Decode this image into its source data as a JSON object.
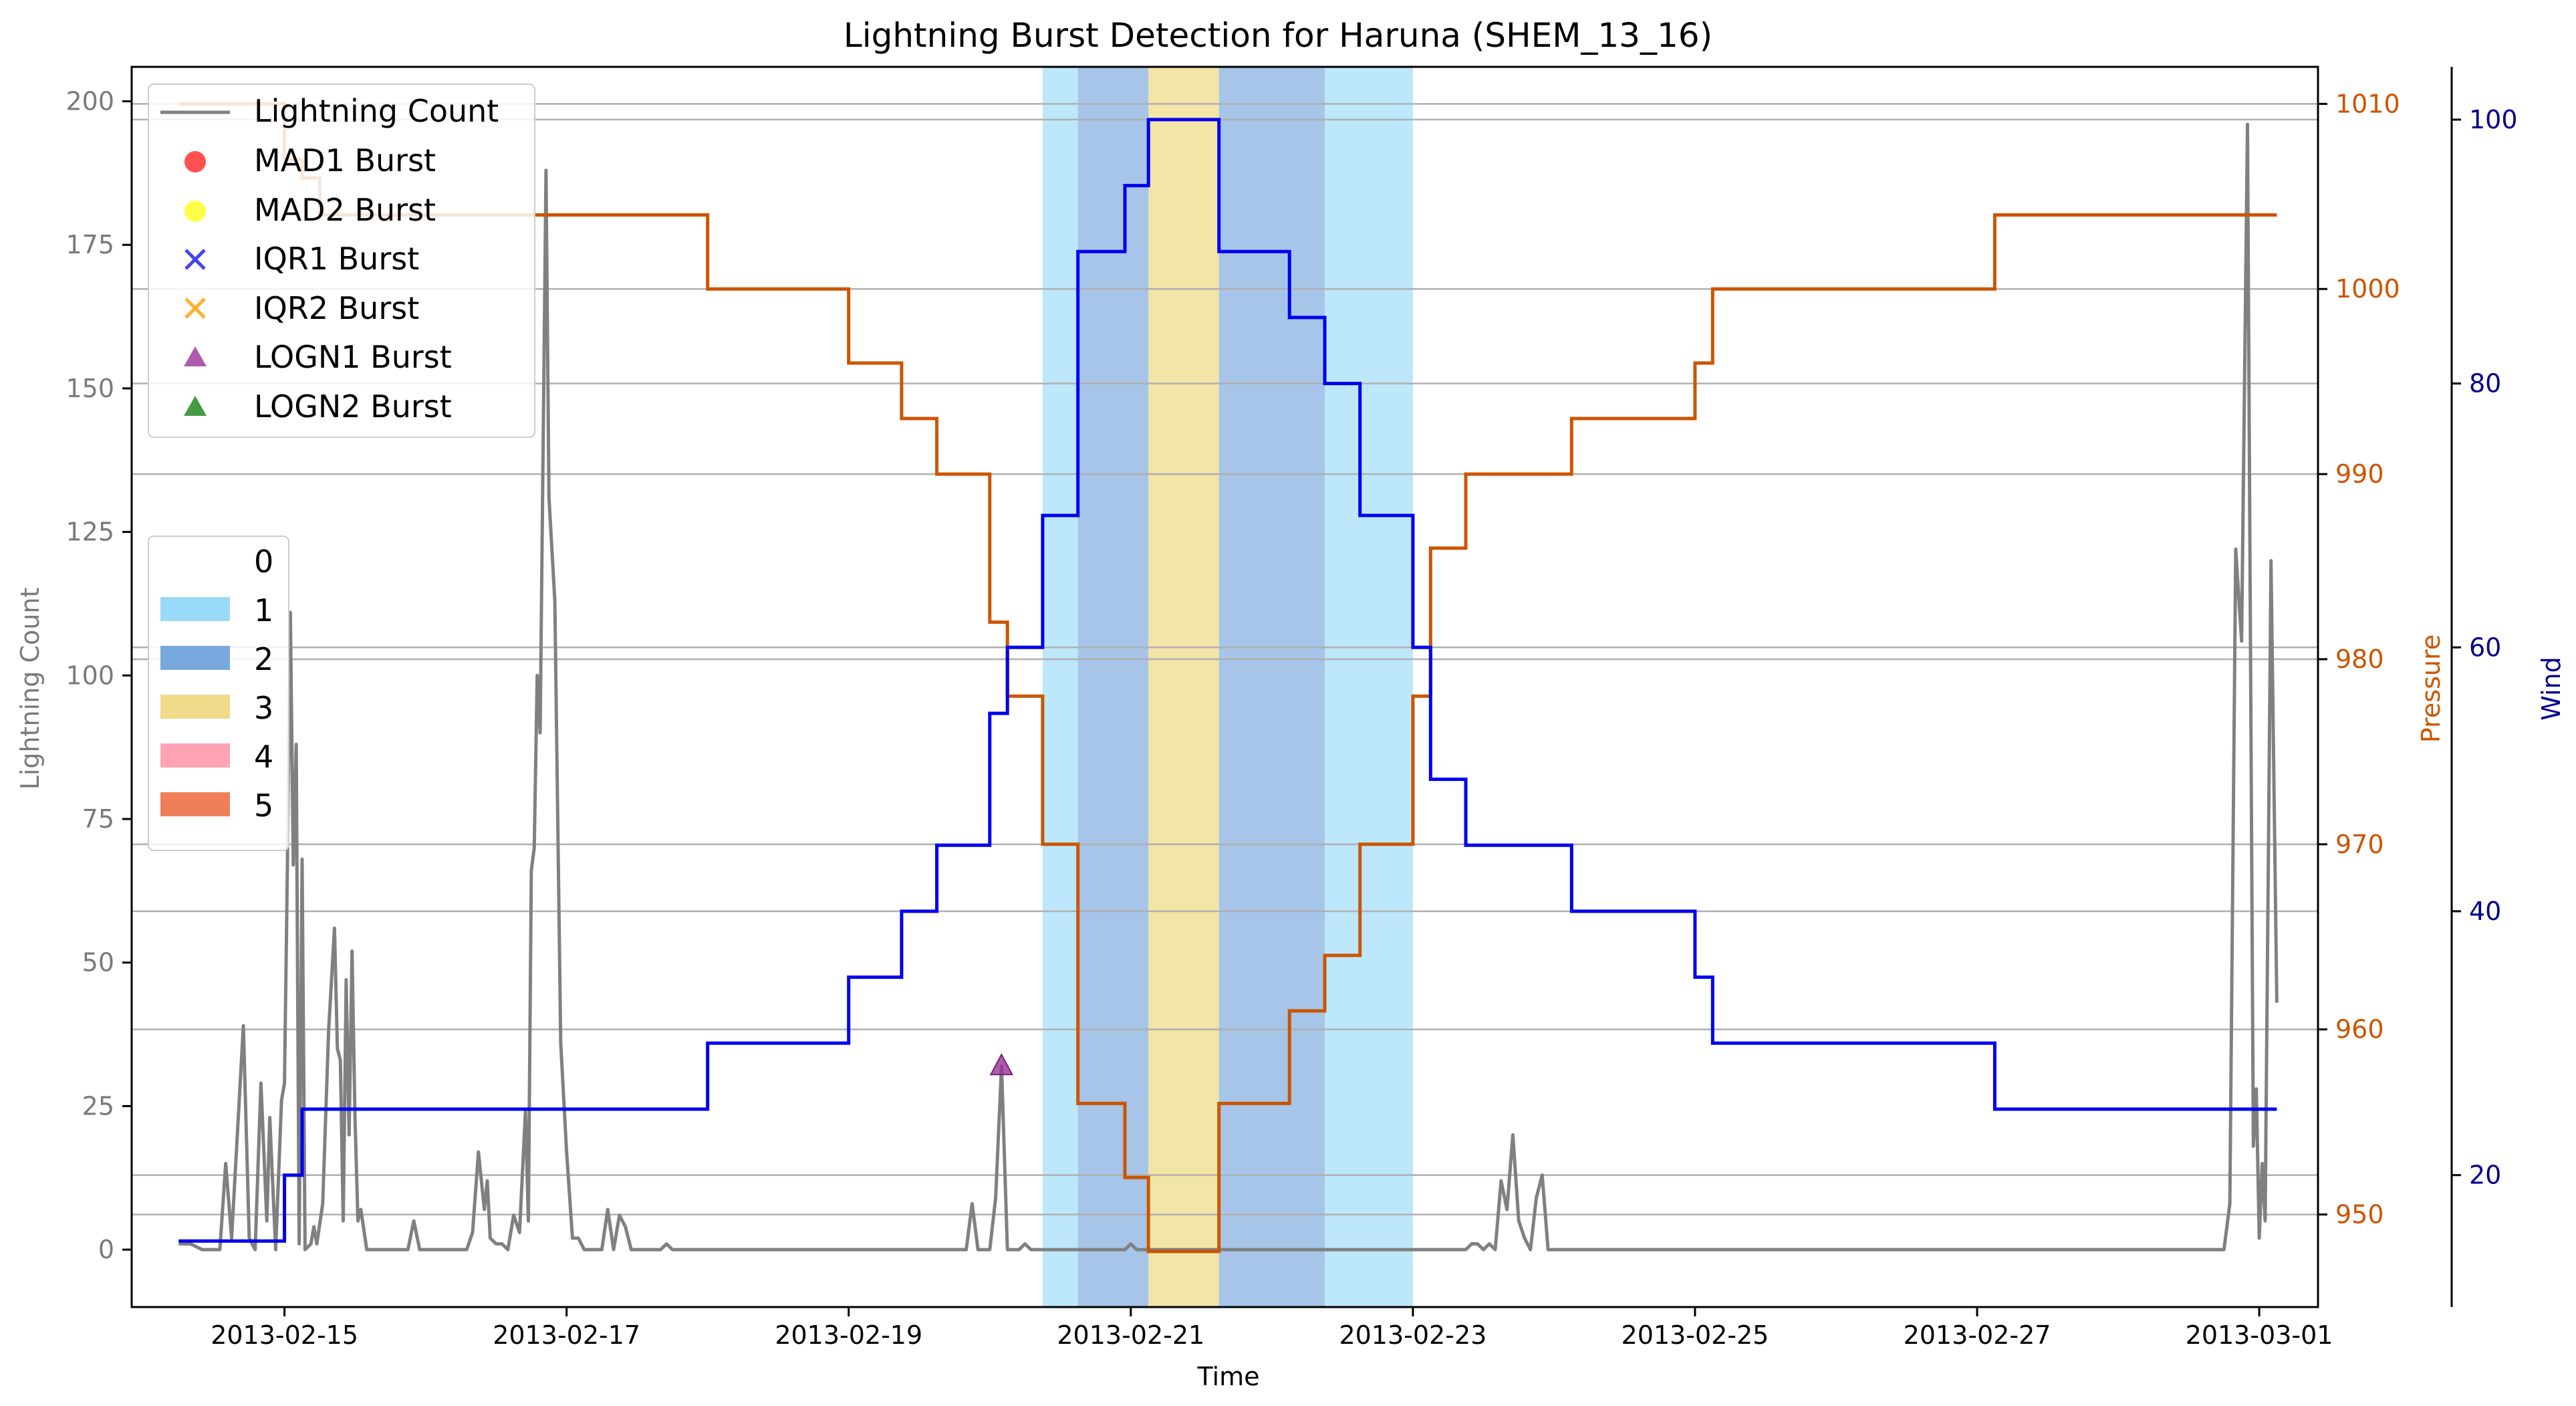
{
  "chart_data": {
    "type": "line",
    "title": "Lightning Burst Detection for Haruna (SHEM_13_16)",
    "xlabel": "Time",
    "ylabel_left": "Lightning Count",
    "ylabel_pressure": "Pressure",
    "ylabel_wind": "Wind",
    "x_range": [
      "2013-02-13T22:00",
      "2013-03-01T10:00"
    ],
    "ylim_left": [
      -10,
      206
    ],
    "ylim_pressure": [
      945,
      1012
    ],
    "ylim_wind": [
      10,
      104
    ],
    "grid": "y",
    "x_ticks": [
      "2013-02-15",
      "2013-02-17",
      "2013-02-19",
      "2013-02-21",
      "2013-02-23",
      "2013-02-25",
      "2013-02-27",
      "2013-03-01"
    ],
    "y_ticks_left": [
      0,
      25,
      50,
      75,
      100,
      125,
      150,
      175,
      200
    ],
    "y_ticks_pressure": [
      950,
      960,
      970,
      980,
      990,
      1000,
      1010
    ],
    "y_ticks_wind": [
      20,
      40,
      60,
      80,
      100
    ],
    "colors": {
      "lightning": "#808080",
      "pressure": "#cc5500",
      "wind": "#0000ee",
      "wind_axis": "#00008b",
      "cat1": "#87d4f7",
      "cat2": "#6a9fd8",
      "cat3": "#efdb8a",
      "cat4": "#ffa3b5",
      "cat5": "#ee7f5a"
    },
    "category_legend": [
      "0",
      "1",
      "2",
      "3",
      "4",
      "5"
    ],
    "category_spans": [
      {
        "start": "2013-02-20T09:00",
        "end": "2013-02-20T15:00",
        "category": 1
      },
      {
        "start": "2013-02-20T15:00",
        "end": "2013-02-21T03:00",
        "category": 2
      },
      {
        "start": "2013-02-21T03:00",
        "end": "2013-02-21T15:00",
        "category": 3
      },
      {
        "start": "2013-02-21T15:00",
        "end": "2013-02-22T09:00",
        "category": 2
      },
      {
        "start": "2013-02-22T09:00",
        "end": "2013-02-23T00:00",
        "category": 1
      }
    ],
    "legend_entries": [
      "Lightning Count",
      "MAD1 Burst",
      "MAD2 Burst",
      "IQR1 Burst",
      "IQR2 Burst",
      "LOGN1 Burst",
      "LOGN2 Burst"
    ],
    "series": [
      {
        "name": "Lightning Count",
        "axis": "left",
        "points": [
          [
            "2013-02-14T06:00",
            1
          ],
          [
            "2013-02-14T08:00",
            1
          ],
          [
            "2013-02-14T10:00",
            0
          ],
          [
            "2013-02-14T13:00",
            0
          ],
          [
            "2013-02-14T14:00",
            15
          ],
          [
            "2013-02-14T15:00",
            2
          ],
          [
            "2013-02-14T17:00",
            39
          ],
          [
            "2013-02-14T18:00",
            2
          ],
          [
            "2013-02-14T19:00",
            0
          ],
          [
            "2013-02-14T20:00",
            29
          ],
          [
            "2013-02-14T21:00",
            5
          ],
          [
            "2013-02-14T21:30",
            23
          ],
          [
            "2013-02-14T22:30",
            0
          ],
          [
            "2013-02-14T23:30",
            26
          ],
          [
            "2013-02-15T00:00",
            29
          ],
          [
            "2013-02-15T00:30",
            67
          ],
          [
            "2013-02-15T01:00",
            111
          ],
          [
            "2013-02-15T01:30",
            67
          ],
          [
            "2013-02-15T02:00",
            88
          ],
          [
            "2013-02-15T02:30",
            1
          ],
          [
            "2013-02-15T03:00",
            68
          ],
          [
            "2013-02-15T03:30",
            0
          ],
          [
            "2013-02-15T04:30",
            1
          ],
          [
            "2013-02-15T05:00",
            4
          ],
          [
            "2013-02-15T05:30",
            1
          ],
          [
            "2013-02-15T06:30",
            8
          ],
          [
            "2013-02-15T07:30",
            38
          ],
          [
            "2013-02-15T08:30",
            56
          ],
          [
            "2013-02-15T09:00",
            35
          ],
          [
            "2013-02-15T09:30",
            33
          ],
          [
            "2013-02-15T10:00",
            5
          ],
          [
            "2013-02-15T10:30",
            47
          ],
          [
            "2013-02-15T11:00",
            20
          ],
          [
            "2013-02-15T11:30",
            52
          ],
          [
            "2013-02-15T12:00",
            23
          ],
          [
            "2013-02-15T12:30",
            5
          ],
          [
            "2013-02-15T13:00",
            7
          ],
          [
            "2013-02-15T14:00",
            0
          ],
          [
            "2013-02-15T21:00",
            0
          ],
          [
            "2013-02-15T22:00",
            5
          ],
          [
            "2013-02-15T23:00",
            0
          ],
          [
            "2013-02-16T07:00",
            0
          ],
          [
            "2013-02-16T08:00",
            3
          ],
          [
            "2013-02-16T09:00",
            17
          ],
          [
            "2013-02-16T10:00",
            7
          ],
          [
            "2013-02-16T10:30",
            12
          ],
          [
            "2013-02-16T11:00",
            2
          ],
          [
            "2013-02-16T12:00",
            1
          ],
          [
            "2013-02-16T13:00",
            1
          ],
          [
            "2013-02-16T14:00",
            0
          ],
          [
            "2013-02-16T15:00",
            6
          ],
          [
            "2013-02-16T16:00",
            3
          ],
          [
            "2013-02-16T17:00",
            24
          ],
          [
            "2013-02-16T17:30",
            5
          ],
          [
            "2013-02-16T18:00",
            66
          ],
          [
            "2013-02-16T18:30",
            70
          ],
          [
            "2013-02-16T19:00",
            100
          ],
          [
            "2013-02-16T19:30",
            90
          ],
          [
            "2013-02-16T20:30",
            188
          ],
          [
            "2013-02-16T21:00",
            131
          ],
          [
            "2013-02-16T22:00",
            113
          ],
          [
            "2013-02-16T23:00",
            36
          ],
          [
            "2013-02-17T00:00",
            17
          ],
          [
            "2013-02-17T01:00",
            2
          ],
          [
            "2013-02-17T02:00",
            2
          ],
          [
            "2013-02-17T03:00",
            0
          ],
          [
            "2013-02-17T06:00",
            0
          ],
          [
            "2013-02-17T07:00",
            7
          ],
          [
            "2013-02-17T08:00",
            0
          ],
          [
            "2013-02-17T09:00",
            6
          ],
          [
            "2013-02-17T10:00",
            4
          ],
          [
            "2013-02-17T11:00",
            0
          ],
          [
            "2013-02-17T16:00",
            0
          ],
          [
            "2013-02-17T17:00",
            1
          ],
          [
            "2013-02-17T18:00",
            0
          ],
          [
            "2013-02-19T20:00",
            0
          ],
          [
            "2013-02-19T21:00",
            8
          ],
          [
            "2013-02-19T22:00",
            0
          ],
          [
            "2013-02-20T00:00",
            0
          ],
          [
            "2013-02-20T01:00",
            9
          ],
          [
            "2013-02-20T02:00",
            32
          ],
          [
            "2013-02-20T03:00",
            0
          ],
          [
            "2013-02-20T05:00",
            0
          ],
          [
            "2013-02-20T06:00",
            1
          ],
          [
            "2013-02-20T07:00",
            0
          ],
          [
            "2013-02-20T23:00",
            0
          ],
          [
            "2013-02-21T00:00",
            1
          ],
          [
            "2013-02-21T01:00",
            0
          ],
          [
            "2013-02-23T09:00",
            0
          ],
          [
            "2013-02-23T10:00",
            1
          ],
          [
            "2013-02-23T11:00",
            1
          ],
          [
            "2013-02-23T12:00",
            0
          ],
          [
            "2013-02-23T13:00",
            1
          ],
          [
            "2013-02-23T14:00",
            0
          ],
          [
            "2013-02-23T15:00",
            12
          ],
          [
            "2013-02-23T16:00",
            7
          ],
          [
            "2013-02-23T17:00",
            20
          ],
          [
            "2013-02-23T18:00",
            5
          ],
          [
            "2013-02-23T19:00",
            2
          ],
          [
            "2013-02-23T20:00",
            0
          ],
          [
            "2013-02-23T21:00",
            9
          ],
          [
            "2013-02-23T22:00",
            13
          ],
          [
            "2013-02-23T23:00",
            0
          ],
          [
            "2013-02-28T18:00",
            0
          ],
          [
            "2013-02-28T19:00",
            8
          ],
          [
            "2013-02-28T20:00",
            122
          ],
          [
            "2013-02-28T21:00",
            106
          ],
          [
            "2013-02-28T22:00",
            196
          ],
          [
            "2013-02-28T23:00",
            18
          ],
          [
            "2013-02-28T23:30",
            28
          ],
          [
            "2013-03-01T00:00",
            2
          ],
          [
            "2013-03-01T00:30",
            15
          ],
          [
            "2013-03-01T01:00",
            5
          ],
          [
            "2013-03-01T02:00",
            120
          ],
          [
            "2013-03-01T03:00",
            43
          ]
        ]
      },
      {
        "name": "Pressure",
        "axis": "pressure",
        "steps": [
          [
            "2013-02-14T06:00",
            1010
          ],
          [
            "2013-02-15T00:00",
            1007
          ],
          [
            "2013-02-15T03:00",
            1006
          ],
          [
            "2013-02-15T06:00",
            1004
          ],
          [
            "2013-02-18T00:00",
            1000
          ],
          [
            "2013-02-19T00:00",
            996
          ],
          [
            "2013-02-19T09:00",
            993
          ],
          [
            "2013-02-19T15:00",
            990
          ],
          [
            "2013-02-20T00:00",
            982
          ],
          [
            "2013-02-20T03:00",
            978
          ],
          [
            "2013-02-20T09:00",
            970
          ],
          [
            "2013-02-20T15:00",
            956
          ],
          [
            "2013-02-20T23:00",
            952
          ],
          [
            "2013-02-21T03:00",
            948
          ],
          [
            "2013-02-21T15:00",
            956
          ],
          [
            "2013-02-22T03:00",
            961
          ],
          [
            "2013-02-22T09:00",
            964
          ],
          [
            "2013-02-22T15:00",
            970
          ],
          [
            "2013-02-23T00:00",
            978
          ],
          [
            "2013-02-23T03:00",
            986
          ],
          [
            "2013-02-23T09:00",
            990
          ],
          [
            "2013-02-24T03:00",
            993
          ],
          [
            "2013-02-25T00:00",
            996
          ],
          [
            "2013-02-25T03:00",
            1000
          ],
          [
            "2013-02-27T03:00",
            1004
          ],
          [
            "2013-03-01T03:00",
            1004
          ]
        ]
      },
      {
        "name": "Wind",
        "axis": "wind",
        "steps": [
          [
            "2013-02-14T06:00",
            15
          ],
          [
            "2013-02-15T00:00",
            20
          ],
          [
            "2013-02-15T03:00",
            25
          ],
          [
            "2013-02-18T00:00",
            30
          ],
          [
            "2013-02-19T00:00",
            35
          ],
          [
            "2013-02-19T09:00",
            40
          ],
          [
            "2013-02-19T15:00",
            45
          ],
          [
            "2013-02-20T00:00",
            55
          ],
          [
            "2013-02-20T03:00",
            60
          ],
          [
            "2013-02-20T09:00",
            70
          ],
          [
            "2013-02-20T15:00",
            90
          ],
          [
            "2013-02-20T23:00",
            95
          ],
          [
            "2013-02-21T03:00",
            100
          ],
          [
            "2013-02-21T15:00",
            90
          ],
          [
            "2013-02-22T03:00",
            85
          ],
          [
            "2013-02-22T09:00",
            80
          ],
          [
            "2013-02-22T15:00",
            70
          ],
          [
            "2013-02-23T00:00",
            60
          ],
          [
            "2013-02-23T03:00",
            50
          ],
          [
            "2013-02-23T09:00",
            45
          ],
          [
            "2013-02-24T03:00",
            40
          ],
          [
            "2013-02-25T00:00",
            35
          ],
          [
            "2013-02-25T03:00",
            30
          ],
          [
            "2013-02-27T03:00",
            25
          ],
          [
            "2013-03-01T03:00",
            25
          ]
        ]
      }
    ],
    "bursts": [
      {
        "type": "LOGN1 Burst",
        "time": "2013-02-20T02:00",
        "value": 32
      }
    ]
  }
}
